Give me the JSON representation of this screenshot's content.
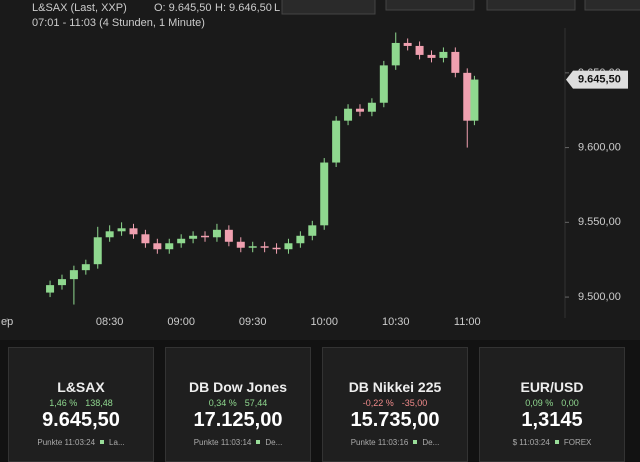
{
  "chart_data": {
    "type": "candlestick",
    "title": "L&SAX (Last, XXP)",
    "info": [
      "O: 9.645,50",
      "H: 9.646,50",
      "L"
    ],
    "subtitle": "07:01 - 11:03 (4 Stunden, 1 Minute)",
    "up_color": "#8fd88f",
    "down_color": "#f0a0b0",
    "x": [
      485,
      490,
      495,
      500,
      505,
      510,
      515,
      520,
      525,
      530,
      535,
      540,
      545,
      550,
      555,
      560,
      565,
      570,
      575,
      580,
      585,
      590,
      595,
      600,
      605,
      610,
      615,
      620,
      625,
      630,
      635,
      640,
      645,
      650,
      655,
      660,
      663
    ],
    "open": [
      9503,
      9508,
      9512,
      9518,
      9522,
      9540,
      9544,
      9546,
      9542,
      9536,
      9532,
      9536,
      9539,
      9541,
      9540,
      9545,
      9537,
      9533,
      9534,
      9533,
      9532,
      9536,
      9541,
      9548,
      9590,
      9618,
      9626,
      9624,
      9630,
      9655,
      9670,
      9668,
      9662,
      9660,
      9664,
      9650,
      9618
    ],
    "high": [
      9511,
      9515,
      9521,
      9525,
      9547,
      9548,
      9550,
      9549,
      9545,
      9539,
      9539,
      9542,
      9544,
      9544,
      9549,
      9548,
      9540,
      9537,
      9537,
      9536,
      9539,
      9544,
      9551,
      9593,
      9621,
      9629,
      9629,
      9633,
      9658,
      9677,
      9673,
      9671,
      9665,
      9667,
      9667,
      9653,
      9648
    ],
    "low": [
      9500,
      9505,
      9495,
      9515,
      9519,
      9537,
      9541,
      9539,
      9533,
      9529,
      9529,
      9533,
      9536,
      9537,
      9537,
      9534,
      9530,
      9530,
      9530,
      9529,
      9529,
      9533,
      9538,
      9545,
      9587,
      9615,
      9621,
      9621,
      9627,
      9652,
      9665,
      9659,
      9657,
      9657,
      9647,
      9600,
      9615
    ],
    "close": [
      9508,
      9512,
      9518,
      9522,
      9540,
      9544,
      9546,
      9542,
      9536,
      9532,
      9536,
      9539,
      9541,
      9540,
      9545,
      9537,
      9533,
      9534,
      9533,
      9532,
      9536,
      9541,
      9548,
      9590,
      9618,
      9626,
      9624,
      9630,
      9655,
      9670,
      9668,
      9662,
      9660,
      9664,
      9650,
      9618,
      9645.5
    ],
    "current": {
      "value": 9645.5,
      "label": "9.645,50"
    },
    "xlim": [
      464,
      701
    ],
    "ylim": [
      9486,
      9680
    ],
    "xticks": [
      {
        "value": 467,
        "label": "ep"
      },
      {
        "value": 510,
        "label": "08:30"
      },
      {
        "value": 540,
        "label": "09:00"
      },
      {
        "value": 570,
        "label": "09:30"
      },
      {
        "value": 600,
        "label": "10:00"
      },
      {
        "value": 630,
        "label": "10:30"
      },
      {
        "value": 660,
        "label": "11:00"
      }
    ],
    "yticks": [
      {
        "value": 9500,
        "label": "9.500,00"
      },
      {
        "value": 9550,
        "label": "9.550,00"
      },
      {
        "value": 9600,
        "label": "9.600,00"
      },
      {
        "value": 9650,
        "label": "9.650,00"
      }
    ]
  },
  "tiles": [
    {
      "name": "L&SAX",
      "change_pct": "1,46 %",
      "change_abs": "138,48",
      "change_color": "#8fd88f",
      "value": "9.645,50",
      "time": "Punkte 11:03:24",
      "source": "La..."
    },
    {
      "name": "DB Dow Jones",
      "change_pct": "0,34 %",
      "change_abs": "57,44",
      "change_color": "#8fd88f",
      "value": "17.125,00",
      "time": "Punkte 11:03:14",
      "source": "De..."
    },
    {
      "name": "DB Nikkei 225",
      "change_pct": "-0,22 %",
      "change_abs": "-35,00",
      "change_color": "#f08a8a",
      "value": "15.735,00",
      "time": "Punkte 11:03:16",
      "source": "De..."
    },
    {
      "name": "EUR/USD",
      "change_pct": "0,09 %",
      "change_abs": "0,00",
      "change_color": "#8fd88f",
      "value": "1,3145",
      "time": "$ 11:03:24",
      "source": "FOREX"
    }
  ]
}
